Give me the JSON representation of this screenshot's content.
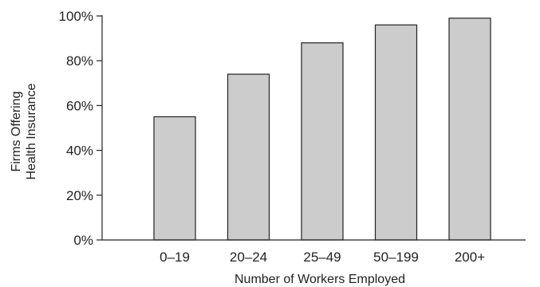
{
  "chart_data": {
    "type": "bar",
    "categories": [
      "0–19",
      "20–24",
      "25–49",
      "50–199",
      "200+"
    ],
    "values": [
      55,
      74,
      88,
      96,
      99
    ],
    "title": "",
    "xlabel": "Number of Workers Employed",
    "ylabel_lines": [
      "Firms Offering",
      "Health Insurance"
    ],
    "ylim": [
      0,
      100
    ],
    "yticks": [
      "0%",
      "20%",
      "40%",
      "60%",
      "80%",
      "100%"
    ],
    "grid": false,
    "legend": "none",
    "bar_color": "#cccccc",
    "edge_color": "#222222"
  }
}
